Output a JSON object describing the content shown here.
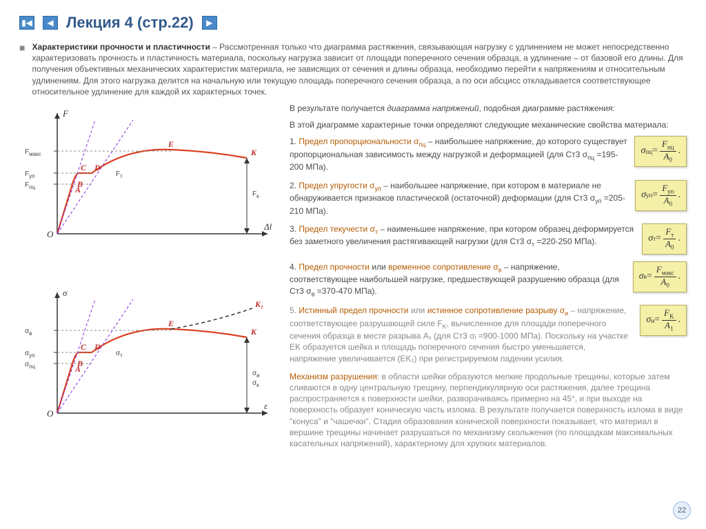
{
  "header": {
    "title": "Лекция 4 (стр.22)"
  },
  "intro": {
    "bold": "Характеристики прочности и пластичности",
    "text": " – Рассмотренная только что диаграмма растяжения, связывающая нагрузку с удлинением не может непосредственно характеризовать прочность и пластичность материала, поскольку нагрузка зависит от площади поперечного сечения образца, а удлинение – от базовой его длины. Для получения объективных механических характеристик материала, не зависящих от сечения и длины образца, необходимо перейти к напряжениям и относительным удлинениям. Для этого нагрузка делится на начальную или текущую площадь поперечного сечения образца, а по оси абсцисс откладывается соответствующее относительное удлинение для каждой их характерных точек."
  },
  "result_line": {
    "p1": "В результате получается ",
    "em": "диаграмма напряжений",
    "p2": ", подобная диаграмме растяжения:"
  },
  "subline": "В этой диаграмме характерные точки определяют следующие механические свойства материала:",
  "defs": [
    {
      "n": "1. ",
      "term": "Предел пропорциональности σ",
      "sub": "пц",
      "rest": " – наибольшее напряжение, до которого существует пропорциональная зависимость между нагрузкой и деформацией (для Ст3 σ",
      "sub2": "пц",
      "tail": " =195-200 МПа).",
      "f_left": "σ",
      "f_lsub": "пц",
      "f_num": "F",
      "f_nsub": "пц",
      "f_den": "A",
      "f_dsub": "0"
    },
    {
      "n": "2. ",
      "term": "Предел упругости σ",
      "sub": "уп",
      "rest": " – наибольшее напряжение, при котором в материале не обнаруживается признаков пластической (остаточной) деформации (для Ст3 σ",
      "sub2": "уп",
      "tail": " =205-210 МПа).",
      "f_left": "σ",
      "f_lsub": "уп",
      "f_num": "F",
      "f_nsub": "уп",
      "f_den": "A",
      "f_dsub": "0"
    },
    {
      "n": "3. ",
      "term": "Предел текучести σ",
      "sub": "т",
      "rest": " – наименьшее напряжение, при котором образец деформируется без заметного увеличения растягивающей нагрузки (для Ст3 σ",
      "sub2": "т",
      "tail": " =220-250 МПа).",
      "f_left": "σ",
      "f_lsub": "т",
      "f_num": "F",
      "f_nsub": "т",
      "f_den": "A",
      "f_dsub": "0"
    },
    {
      "n": "4. ",
      "term": "Предел прочности",
      "mid": " или ",
      "term2": "временное сопротивление σ",
      "sub": "в",
      "rest": " – напряжение, соответствующее наибольшей нагрузке, предшествующей разрушению образца (для Ст3 σ",
      "sub2": "в",
      "tail": " =370-470 МПа).",
      "f_left": "σ",
      "f_lsub": "в",
      "f_num": "F",
      "f_nsub": "макс",
      "f_den": "A",
      "f_dsub": "0"
    },
    {
      "n": "5. ",
      "term": "Истинный предел прочности",
      "mid": " или ",
      "term2": "истинное сопротивление разрыву σ",
      "sub": "и",
      "rest": " – напряжение, соответствующее разрушающей силе F",
      "sub2": "K",
      "tail": ", вычисленное для площади поперечного сечения образца в месте разрыва A₁ (для Ст3 σᵢ =900-1000 МПа). Поскольку на участке EK образуется шейка и площадь поперечного сечения быстро уменьшается, напряжение увеличивается (EK₁) при регистрируемом падении усилия.",
      "gray": true,
      "f_left": "σ",
      "f_lsub": "и",
      "f_num": "F",
      "f_nsub": "K",
      "f_den": "A",
      "f_dsub": "1"
    }
  ],
  "mechanism": {
    "label": "Механизм разрушения",
    "text": ": в области шейки образуются мелкие продольные трещины, которые затем сливаются в одну центральную трещину, перпендикулярную оси растяжения, далее трещина распространяется к поверхности шейки, разворачиваясь примерно на 45°, и при выходе на поверхность образует коническую часть излома. В результате получается поверхность излома в виде \"конуса\" и \"чашечки\". Стадия образования конической поверхности показывает, что материал в вершине трещины начинает разрушаться по механизму скольжения (по площадкам максимальных касательных напряжений), характерному для хрупких материалов."
  },
  "page_number": "22",
  "diagram1": {
    "y_axis": "F",
    "x_axis": "Δl",
    "origin": "O",
    "y_ticks": [
      "F",
      "F",
      "F"
    ],
    "y_tick_subs": [
      "макс",
      "уп",
      "пц"
    ],
    "ft_label": "F",
    "ft_sub": "т",
    "fk_label": "F",
    "fk_sub": "к",
    "points": {
      "A": "A",
      "B": "B",
      "C": "C",
      "D": "D",
      "E": "E",
      "K": "K"
    },
    "colors": {
      "curve": "#d94020",
      "axis": "#333333",
      "dash": "#888888",
      "tangent": "#8a2be2"
    }
  },
  "diagram2": {
    "y_axis": "σ",
    "x_axis": "ε",
    "origin": "O",
    "y_ticks": [
      "σ",
      "σ",
      "σ"
    ],
    "y_tick_subs": [
      "в",
      "уп",
      "пц"
    ],
    "st_label": "σ",
    "st_sub": "т",
    "sk_label": "σ",
    "sk_sub": "к",
    "si_label": "σ",
    "si_sub": "и",
    "points": {
      "A": "A",
      "B": "B",
      "C": "C",
      "D": "D",
      "E": "E",
      "K": "K",
      "K1": "K₁"
    },
    "colors": {
      "curve": "#d94020",
      "axis": "#333333",
      "dash": "#888888",
      "true_curve": "#333333"
    }
  }
}
